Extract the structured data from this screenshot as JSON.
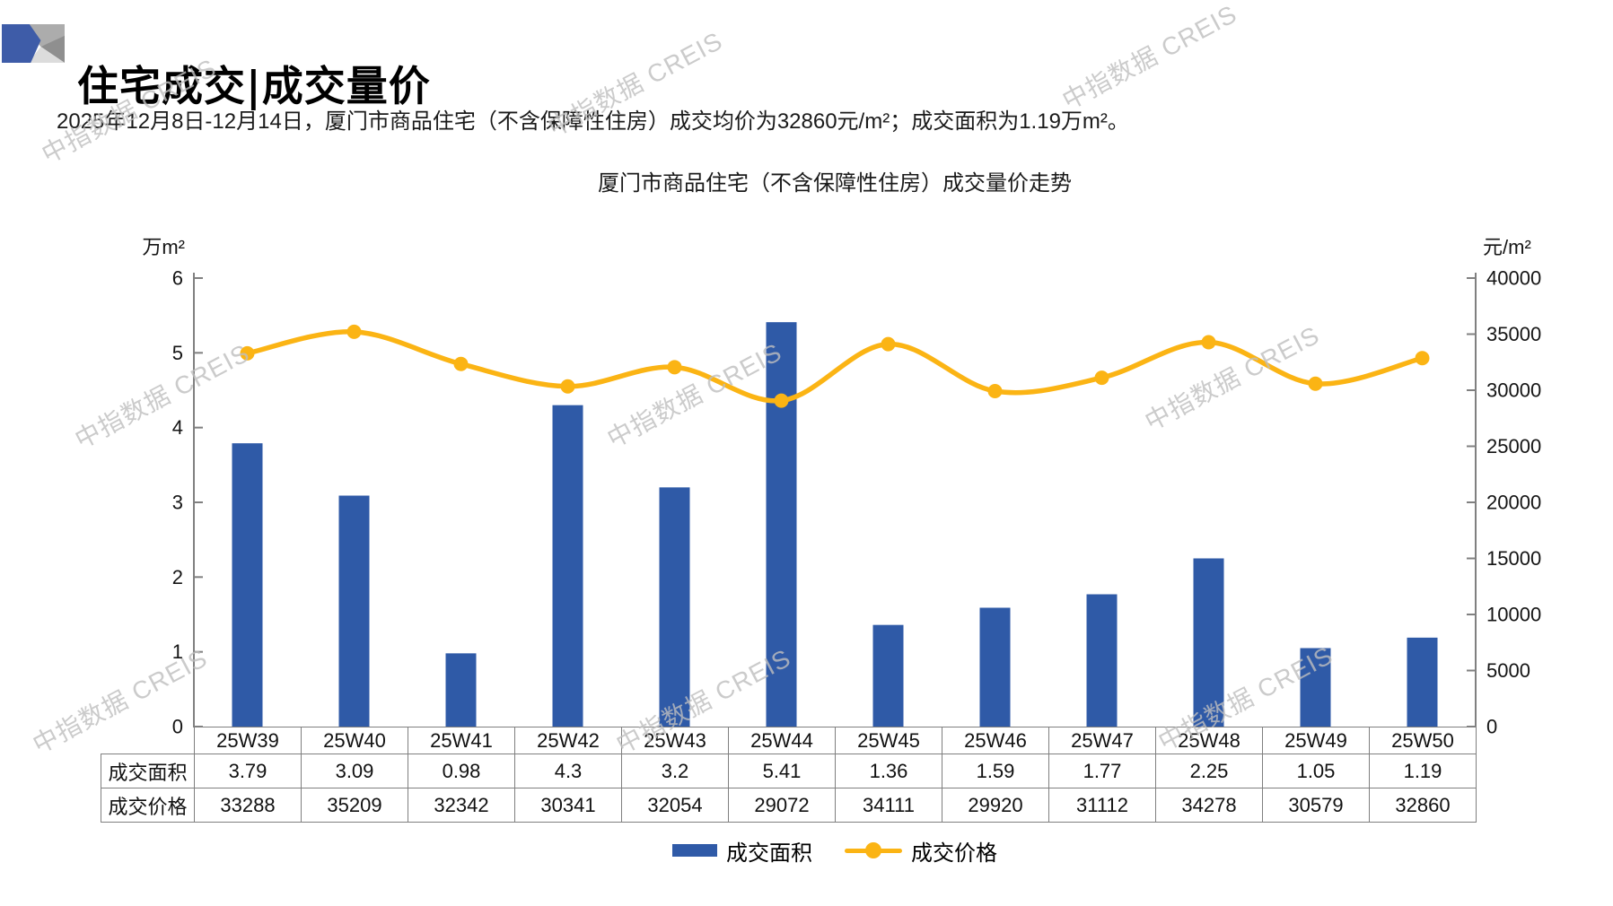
{
  "page": {
    "title": "住宅成交|成交量价",
    "subtitle": "2025年12月8日-12月14日，厦门市商品住宅（不含保障性住房）成交均价为32860元/m²；成交面积为1.19万m²。",
    "watermark": "中指数据 CREIS"
  },
  "chart_data": {
    "type": "combo",
    "title": "厦门市商品住宅（不含保障性住房）成交量价走势",
    "categories": [
      "25W39",
      "25W40",
      "25W41",
      "25W42",
      "25W43",
      "25W44",
      "25W45",
      "25W46",
      "25W47",
      "25W48",
      "25W49",
      "25W50"
    ],
    "series": [
      {
        "name": "成交面积",
        "type": "bar",
        "axis": "left",
        "color": "#2F5AA7",
        "values": [
          3.79,
          3.09,
          0.98,
          4.3,
          3.2,
          5.41,
          1.36,
          1.59,
          1.77,
          2.25,
          1.05,
          1.19
        ]
      },
      {
        "name": "成交价格",
        "type": "line",
        "axis": "right",
        "color": "#FBB414",
        "values": [
          33288,
          35209,
          32342,
          30341,
          32054,
          29072,
          34111,
          29920,
          31112,
          34278,
          30579,
          32860
        ]
      }
    ],
    "left_axis": {
      "label": "万m²",
      "min": 0,
      "max": 6,
      "step": 1,
      "ticks": [
        "0",
        "1",
        "2",
        "3",
        "4",
        "5",
        "6"
      ]
    },
    "right_axis": {
      "label": "元/m²",
      "min": 0,
      "max": 40000,
      "step": 5000,
      "ticks": [
        "0",
        "5000",
        "10000",
        "15000",
        "20000",
        "25000",
        "30000",
        "35000",
        "40000"
      ]
    },
    "grid": false,
    "legend_position": "bottom",
    "table_row_headers": [
      "成交面积",
      "成交价格"
    ]
  },
  "colors": {
    "bar": "#2F5AA7",
    "line": "#FBB414",
    "axis": "#808080",
    "tick_label": "#141414",
    "table_border": "#7F7F7F",
    "watermark": "#BFBFBF",
    "logo_blue": "#3E5CA8",
    "logo_gray_mid": "#ACACAC",
    "logo_gray_dark": "#8F8F8F",
    "logo_gray_light": "#DCDCDC"
  }
}
